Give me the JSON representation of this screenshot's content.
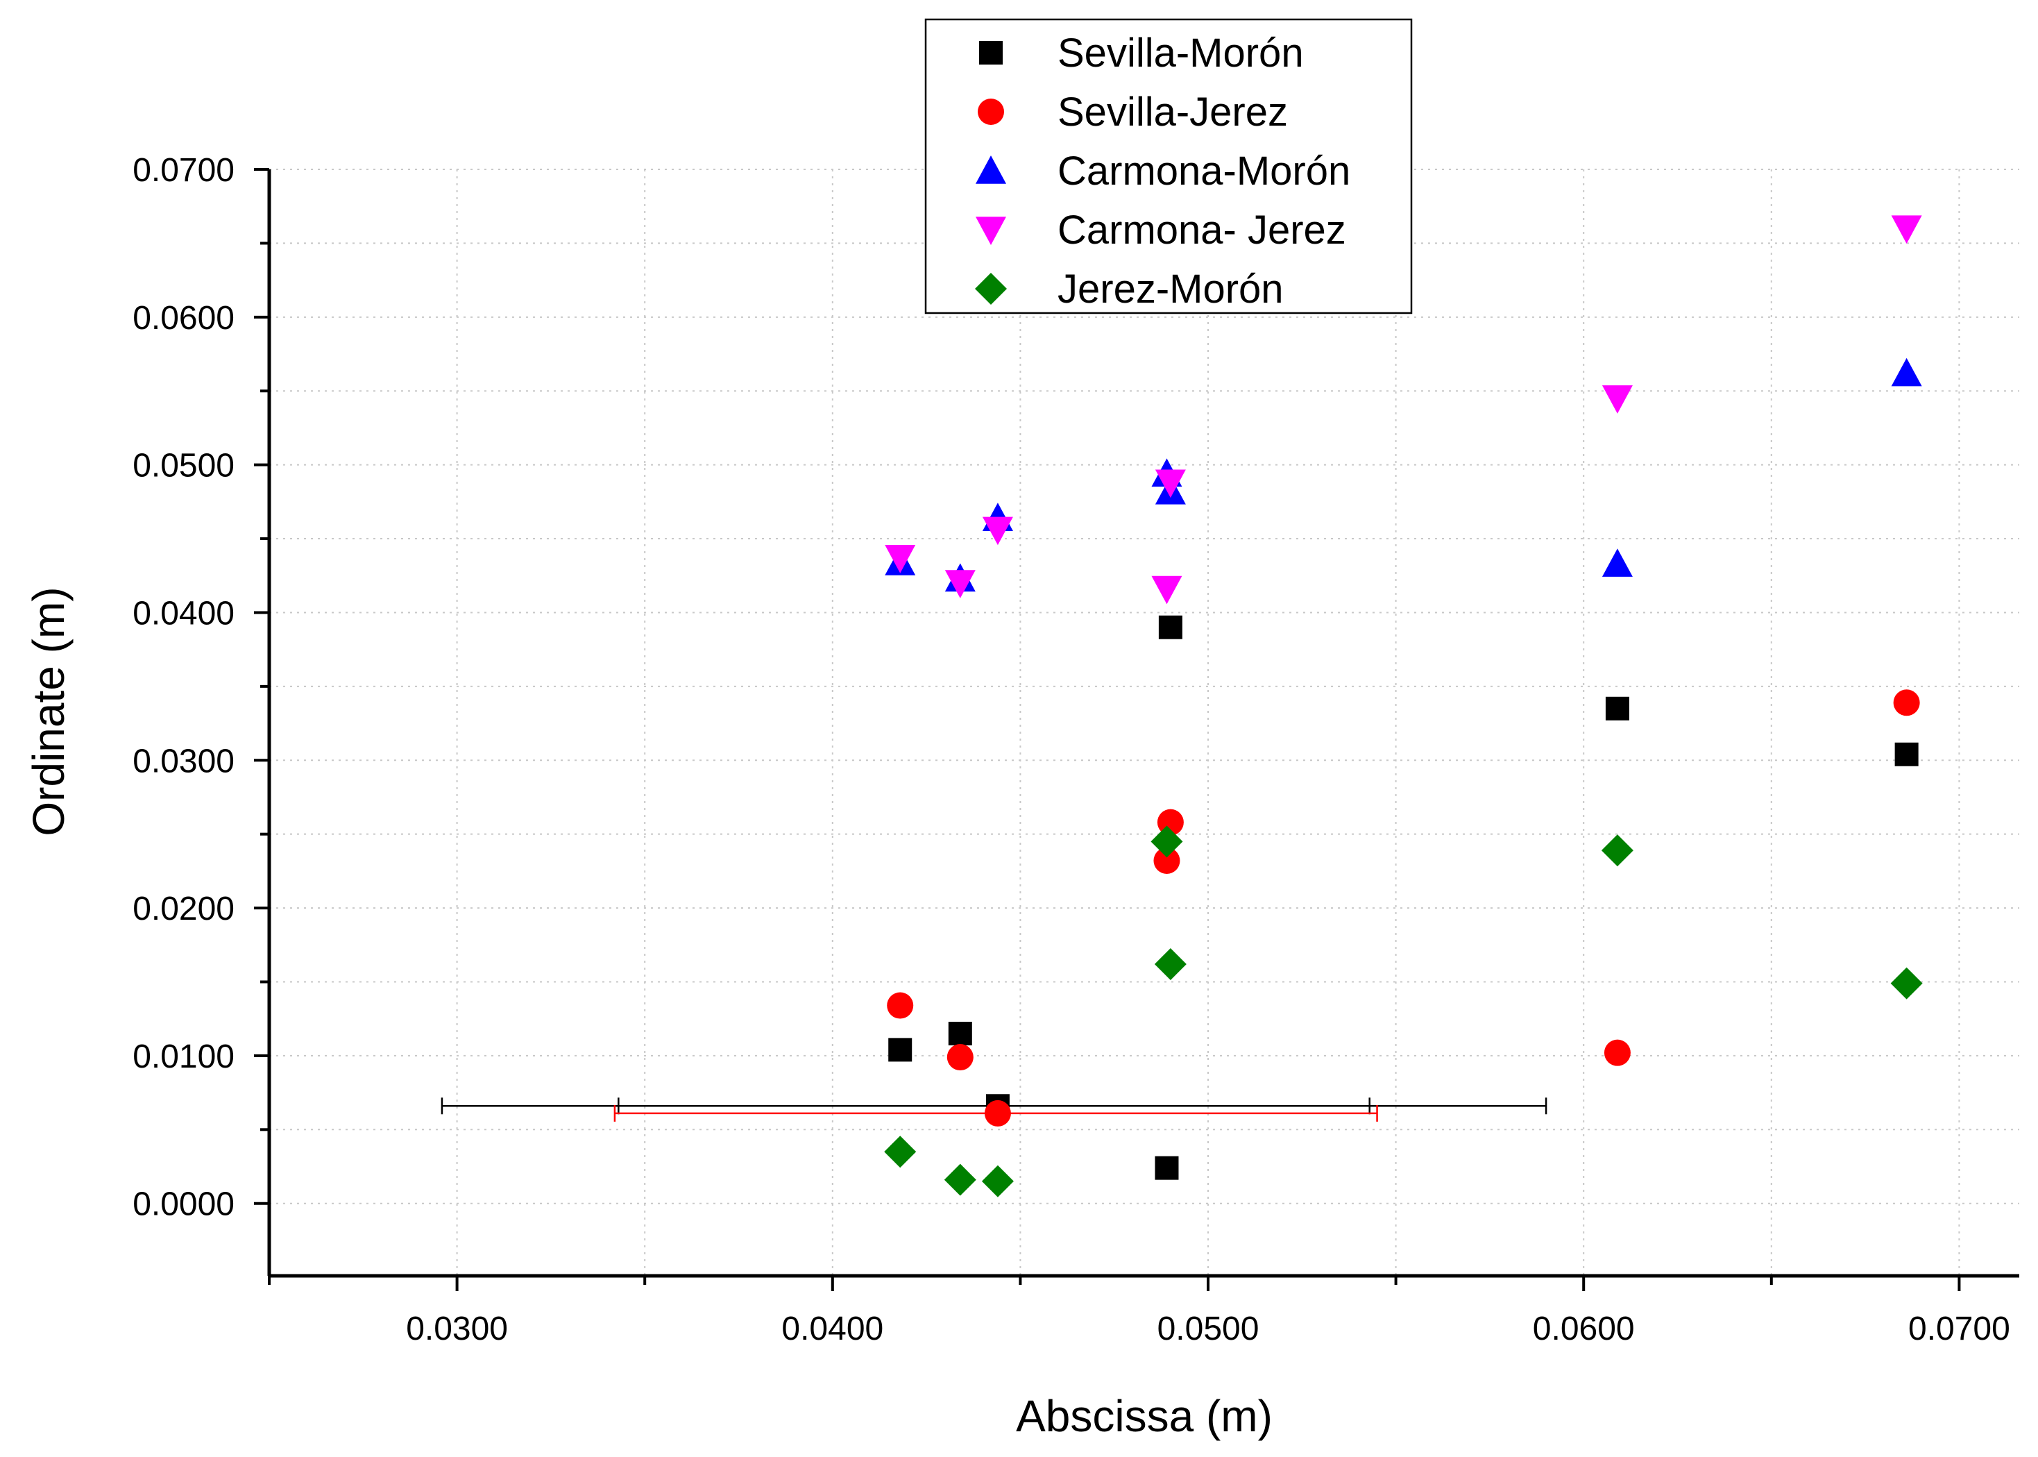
{
  "chart_data": {
    "type": "scatter",
    "xlabel": "Abscissa (m)",
    "ylabel": "Ordinate (m)",
    "xlim": [
      0.025,
      0.0716
    ],
    "ylim": [
      -0.0049,
      0.07
    ],
    "xticks": [
      "0.0300",
      "0.0400",
      "0.0500",
      "0.0600",
      "0.0700"
    ],
    "xtick_values": [
      0.03,
      0.04,
      0.05,
      0.06,
      0.07
    ],
    "yticks": [
      "0.0000",
      "0.0100",
      "0.0200",
      "0.0300",
      "0.0400",
      "0.0500",
      "0.0600",
      "0.0700"
    ],
    "ytick_values": [
      0.0,
      0.01,
      0.02,
      0.03,
      0.04,
      0.05,
      0.06,
      0.07
    ],
    "grid": true,
    "legend_position": "top-center",
    "series": [
      {
        "name": "Sevilla-Morón",
        "marker": "square",
        "color": "#000000",
        "points": [
          [
            0.0418,
            0.0104
          ],
          [
            0.0434,
            0.0115
          ],
          [
            0.0444,
            0.0066
          ],
          [
            0.0489,
            0.0024
          ],
          [
            0.049,
            0.039
          ],
          [
            0.0609,
            0.0335
          ],
          [
            0.0686,
            0.0304
          ]
        ]
      },
      {
        "name": "Sevilla-Jerez",
        "marker": "circle",
        "color": "#ff0000",
        "points": [
          [
            0.0418,
            0.0134
          ],
          [
            0.0434,
            0.0099
          ],
          [
            0.0444,
            0.0061
          ],
          [
            0.0489,
            0.0232
          ],
          [
            0.049,
            0.0258
          ],
          [
            0.0609,
            0.0102
          ],
          [
            0.0686,
            0.0339
          ]
        ]
      },
      {
        "name": "Carmona-Morón",
        "marker": "triangle-up",
        "color": "#0000ff",
        "points": [
          [
            0.0418,
            0.0434
          ],
          [
            0.0434,
            0.0423
          ],
          [
            0.0444,
            0.0464
          ],
          [
            0.0489,
            0.0494
          ],
          [
            0.049,
            0.0482
          ],
          [
            0.0609,
            0.0433
          ],
          [
            0.0686,
            0.0562
          ]
        ]
      },
      {
        "name": "Carmona- Jerez",
        "marker": "triangle-down",
        "color": "#ff00ff",
        "points": [
          [
            0.0418,
            0.0437
          ],
          [
            0.0434,
            0.042
          ],
          [
            0.0444,
            0.0456
          ],
          [
            0.0489,
            0.0416
          ],
          [
            0.049,
            0.0488
          ],
          [
            0.0609,
            0.0545
          ],
          [
            0.0686,
            0.066
          ]
        ]
      },
      {
        "name": "Jerez-Morón",
        "marker": "diamond",
        "color": "#008000",
        "points": [
          [
            0.0418,
            0.0035
          ],
          [
            0.0434,
            0.0016
          ],
          [
            0.0444,
            0.0015
          ],
          [
            0.0489,
            0.0245
          ],
          [
            0.049,
            0.0162
          ],
          [
            0.0609,
            0.0239
          ],
          [
            0.0686,
            0.0149
          ]
        ]
      }
    ],
    "error_bars": [
      {
        "series": "Sevilla-Morón",
        "color": "#000000",
        "x": 0.0444,
        "y": 0.0066,
        "xmin": 0.0296,
        "xmax": 0.059,
        "inner_xmin": 0.0343,
        "inner_xmax": 0.0543
      },
      {
        "series": "Sevilla-Jerez",
        "color": "#ff0000",
        "x": 0.0444,
        "y": 0.0061,
        "xmin": 0.0342,
        "xmax": 0.0545
      }
    ]
  }
}
